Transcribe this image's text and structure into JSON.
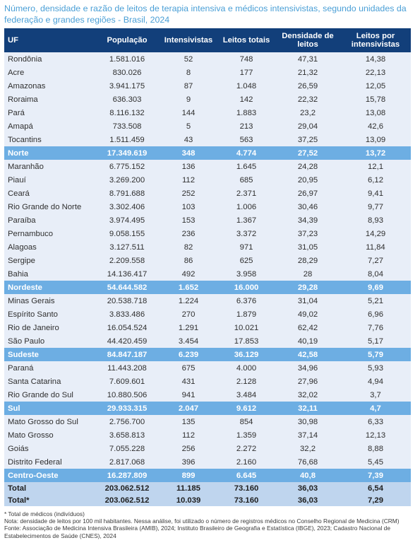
{
  "title": "Número, densidade e razão de leitos de terapia intensiva e médicos intensivistas, segundo unidades da federação e grandes regiões - Brasil, 2024",
  "columns": [
    "UF",
    "População",
    "Intensivistas",
    "Leitos totais",
    "Densidade de leitos",
    "Leitos por intensivistas"
  ],
  "rows": [
    {
      "type": "state",
      "cells": [
        "Rondônia",
        "1.581.016",
        "52",
        "748",
        "47,31",
        "14,38"
      ]
    },
    {
      "type": "state",
      "cells": [
        "Acre",
        "830.026",
        "8",
        "177",
        "21,32",
        "22,13"
      ]
    },
    {
      "type": "state",
      "cells": [
        "Amazonas",
        "3.941.175",
        "87",
        "1.048",
        "26,59",
        "12,05"
      ]
    },
    {
      "type": "state",
      "cells": [
        "Roraima",
        "636.303",
        "9",
        "142",
        "22,32",
        "15,78"
      ]
    },
    {
      "type": "state",
      "cells": [
        "Pará",
        "8.116.132",
        "144",
        "1.883",
        "23,2",
        "13,08"
      ]
    },
    {
      "type": "state",
      "cells": [
        "Amapá",
        "733.508",
        "5",
        "213",
        "29,04",
        "42,6"
      ]
    },
    {
      "type": "state",
      "cells": [
        "Tocantins",
        "1.511.459",
        "43",
        "563",
        "37,25",
        "13,09"
      ]
    },
    {
      "type": "region",
      "cells": [
        "Norte",
        "17.349.619",
        "348",
        "4.774",
        "27,52",
        "13,72"
      ]
    },
    {
      "type": "state",
      "cells": [
        "Maranhão",
        "6.775.152",
        "136",
        "1.645",
        "24,28",
        "12,1"
      ]
    },
    {
      "type": "state",
      "cells": [
        "Piauí",
        "3.269.200",
        "112",
        "685",
        "20,95",
        "6,12"
      ]
    },
    {
      "type": "state",
      "cells": [
        "Ceará",
        "8.791.688",
        "252",
        "2.371",
        "26,97",
        "9,41"
      ]
    },
    {
      "type": "state",
      "cells": [
        "Rio Grande do Norte",
        "3.302.406",
        "103",
        "1.006",
        "30,46",
        "9,77"
      ]
    },
    {
      "type": "state",
      "cells": [
        "Paraíba",
        "3.974.495",
        "153",
        "1.367",
        "34,39",
        "8,93"
      ]
    },
    {
      "type": "state",
      "cells": [
        "Pernambuco",
        "9.058.155",
        "236",
        "3.372",
        "37,23",
        "14,29"
      ]
    },
    {
      "type": "state",
      "cells": [
        "Alagoas",
        "3.127.511",
        "82",
        "971",
        "31,05",
        "11,84"
      ]
    },
    {
      "type": "state",
      "cells": [
        "Sergipe",
        "2.209.558",
        "86",
        "625",
        "28,29",
        "7,27"
      ]
    },
    {
      "type": "state",
      "cells": [
        "Bahia",
        "14.136.417",
        "492",
        "3.958",
        "28",
        "8,04"
      ]
    },
    {
      "type": "region",
      "cells": [
        "Nordeste",
        "54.644.582",
        "1.652",
        "16.000",
        "29,28",
        "9,69"
      ]
    },
    {
      "type": "state",
      "cells": [
        "Minas Gerais",
        "20.538.718",
        "1.224",
        "6.376",
        "31,04",
        "5,21"
      ]
    },
    {
      "type": "state",
      "cells": [
        "Espírito Santo",
        "3.833.486",
        "270",
        "1.879",
        "49,02",
        "6,96"
      ]
    },
    {
      "type": "state",
      "cells": [
        "Rio de Janeiro",
        "16.054.524",
        "1.291",
        "10.021",
        "62,42",
        "7,76"
      ]
    },
    {
      "type": "state",
      "cells": [
        "São Paulo",
        "44.420.459",
        "3.454",
        "17.853",
        "40,19",
        "5,17"
      ]
    },
    {
      "type": "region",
      "cells": [
        "Sudeste",
        "84.847.187",
        "6.239",
        "36.129",
        "42,58",
        "5,79"
      ]
    },
    {
      "type": "state",
      "cells": [
        "Paraná",
        "11.443.208",
        "675",
        "4.000",
        "34,96",
        "5,93"
      ]
    },
    {
      "type": "state",
      "cells": [
        "Santa Catarina",
        "7.609.601",
        "431",
        "2.128",
        "27,96",
        "4,94"
      ]
    },
    {
      "type": "state",
      "cells": [
        "Rio Grande do Sul",
        "10.880.506",
        "941",
        "3.484",
        "32,02",
        "3,7"
      ]
    },
    {
      "type": "region",
      "cells": [
        "Sul",
        "29.933.315",
        "2.047",
        "9.612",
        "32,11",
        "4,7"
      ]
    },
    {
      "type": "state",
      "cells": [
        "Mato Grosso do Sul",
        "2.756.700",
        "135",
        "854",
        "30,98",
        "6,33"
      ]
    },
    {
      "type": "state",
      "cells": [
        "Mato Grosso",
        "3.658.813",
        "112",
        "1.359",
        "37,14",
        "12,13"
      ]
    },
    {
      "type": "state",
      "cells": [
        "Goiás",
        "7.055.228",
        "256",
        "2.272",
        "32,2",
        "8,88"
      ]
    },
    {
      "type": "state",
      "cells": [
        "Distrito Federal",
        "2.817.068",
        "396",
        "2.160",
        "76,68",
        "5,45"
      ]
    },
    {
      "type": "region",
      "cells": [
        "Centro-Oeste",
        "16.287.809",
        "899",
        "6.645",
        "40,8",
        "7,39"
      ]
    },
    {
      "type": "total",
      "cells": [
        "Total",
        "203.062.512",
        "11.185",
        "73.160",
        "36,03",
        "6,54"
      ]
    },
    {
      "type": "total",
      "cells": [
        "Total*",
        "203.062.512",
        "10.039",
        "73.160",
        "36,03",
        "7,29"
      ]
    }
  ],
  "footnotes": [
    "* Total de médicos (indivíduos)",
    "Nota: densidade de leitos por 100 mil habitantes. Nessa análise, foi utilizado o número de registros médicos no Conselho Regional de Medicina (CRM)",
    "Fonte: Associação de Medicina Intensiva Brasileira (AMIB), 2024; Instituto Brasileiro de Geografia e Estatística (IBGE), 2023; Cadastro Nacional de Estabelecimentos de Saúde (CNES), 2024"
  ]
}
